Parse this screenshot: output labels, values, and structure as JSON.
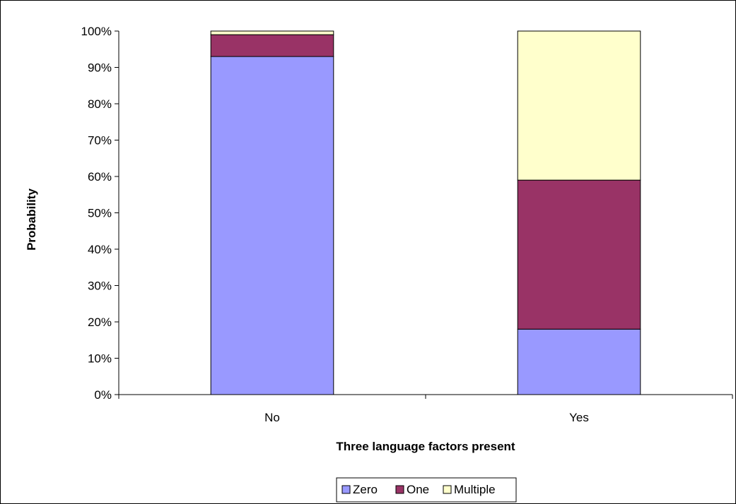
{
  "chart_data": {
    "type": "bar",
    "stacked": true,
    "percent_scale": true,
    "categories": [
      "No",
      "Yes"
    ],
    "series": [
      {
        "name": "Zero",
        "values": [
          93,
          18
        ],
        "color": "#9999ff"
      },
      {
        "name": "One",
        "values": [
          6,
          41
        ],
        "color": "#993366"
      },
      {
        "name": "Multiple",
        "values": [
          1,
          41
        ],
        "color": "#ffffcc"
      }
    ],
    "xlabel": "Three language factors present",
    "ylabel": "Probability",
    "ylim": [
      0,
      100
    ],
    "yticks": [
      "0%",
      "10%",
      "20%",
      "30%",
      "40%",
      "50%",
      "60%",
      "70%",
      "80%",
      "90%",
      "100%"
    ],
    "grid": false,
    "legend_position": "bottom"
  }
}
